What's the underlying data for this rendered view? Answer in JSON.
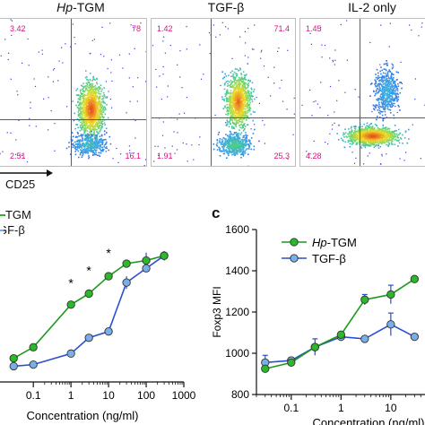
{
  "flow": {
    "xlabel": "CD25",
    "panels": [
      {
        "title_it": "Hp",
        "title_rest": "-TGM",
        "q_ul": "3.42",
        "q_ur": "78",
        "q_ll": "2.51",
        "q_lr": "16.1"
      },
      {
        "title_it": "",
        "title_rest": "TGF-β",
        "q_ul": "1.42",
        "q_ur": "71.4",
        "q_ll": "1.91",
        "q_lr": "25.3"
      },
      {
        "title_it": "",
        "title_rest": "IL-2 only",
        "q_ul": "1.45",
        "q_ur": "",
        "q_ll": "4.28",
        "q_lr": ""
      }
    ]
  },
  "left_legend": {
    "item1": "t-TGM",
    "item2": "GF-β"
  },
  "panel_c_letter": "c",
  "stars": [
    "*",
    "*",
    "*"
  ],
  "chart_data": [
    {
      "type": "line",
      "xscale": "log",
      "xlabel": "Concentration (ng/ml)",
      "xticks": [
        "0.1",
        "1",
        "10",
        "100",
        "1000"
      ],
      "series": [
        {
          "name": "Hp-TGM",
          "color": "#2bb92b",
          "points": [
            [
              0.03,
              1.5
            ],
            [
              0.1,
              2.2
            ],
            [
              1,
              4.9
            ],
            [
              3,
              5.6
            ],
            [
              10,
              6.7
            ],
            [
              30,
              7.5
            ],
            [
              100,
              7.7
            ],
            [
              300,
              8.0
            ]
          ]
        },
        {
          "name": "TGF-β",
          "color": "#7aaee6",
          "points": [
            [
              0.03,
              1.0
            ],
            [
              0.1,
              1.1
            ],
            [
              1,
              1.8
            ],
            [
              3,
              2.8
            ],
            [
              10,
              3.2
            ],
            [
              30,
              6.3
            ],
            [
              100,
              7.2
            ],
            [
              300,
              8.0
            ]
          ]
        }
      ]
    },
    {
      "type": "line",
      "xscale": "log",
      "xlabel": "Concentration (ng/ml)",
      "ylabel": "Foxp3 MFI",
      "ylim": [
        800,
        1600
      ],
      "yticks": [
        "800",
        "1000",
        "1200",
        "1400",
        "1600"
      ],
      "xticks": [
        "0.1",
        "1",
        "10"
      ],
      "legend": [
        "Hp-TGM",
        "TGF-β"
      ],
      "legend_it": "Hp",
      "legend_rest": "-TGM",
      "series": [
        {
          "name": "Hp-TGM",
          "color": "#2bb92b",
          "points": [
            [
              0.03,
              925
            ],
            [
              0.1,
              955
            ],
            [
              0.3,
              1030
            ],
            [
              1,
              1090
            ],
            [
              3,
              1260
            ],
            [
              10,
              1285
            ],
            [
              30,
              1360
            ]
          ]
        },
        {
          "name": "TGF-β",
          "color": "#7aaee6",
          "points": [
            [
              0.03,
              955
            ],
            [
              0.1,
              965
            ],
            [
              0.3,
              1030
            ],
            [
              1,
              1080
            ],
            [
              3,
              1070
            ],
            [
              10,
              1140
            ],
            [
              30,
              1080
            ]
          ]
        }
      ]
    }
  ]
}
